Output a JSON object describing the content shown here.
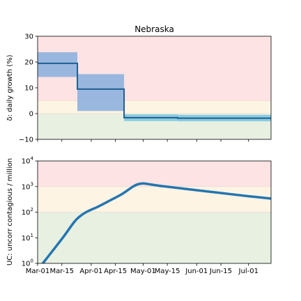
{
  "title": "Nebraska",
  "colors": {
    "zone_high": "#fde3e3",
    "zone_mid": "#fdf4e4",
    "zone_low": "#e7f0e1",
    "zone_line": "#eddccf",
    "band_blue": "#93b4dd",
    "band_cyan": "#86c8e0",
    "line_dark": "#1d5f91",
    "line_main": "#2475b0"
  },
  "chart_data": [
    {
      "type": "line",
      "title": "Nebraska",
      "ylabel": "δ: daily growth (%)",
      "ylim": [
        -10,
        30
      ],
      "yticks": [
        -10,
        0,
        10,
        20,
        30
      ],
      "ytick_labels": [
        "−10",
        "0",
        "10",
        "20",
        "30"
      ],
      "xlim": [
        "2020-03-01",
        "2020-07-14"
      ],
      "xticks": [
        "2020-03-01",
        "2020-03-15",
        "2020-04-01",
        "2020-04-15",
        "2020-05-01",
        "2020-05-15",
        "2020-06-01",
        "2020-06-15",
        "2020-07-01"
      ],
      "zones": [
        {
          "name": "high",
          "from": 5,
          "to": 30
        },
        {
          "name": "mid",
          "from": 0,
          "to": 5
        },
        {
          "name": "low",
          "from": -10,
          "to": 0
        }
      ],
      "segments": [
        {
          "start": "2020-03-01",
          "end": "2020-03-24",
          "value": 19.5,
          "ci": [
            14.2,
            23.8
          ],
          "band": "blue"
        },
        {
          "start": "2020-03-24",
          "end": "2020-04-20",
          "value": 9.5,
          "ci": [
            1.0,
            15.3
          ],
          "band": "blue"
        },
        {
          "start": "2020-04-20",
          "end": "2020-05-21",
          "value": -1.6,
          "ci": [
            -2.9,
            -0.3
          ],
          "band": "cyan"
        },
        {
          "start": "2020-05-21",
          "end": "2020-07-14",
          "value": -1.8,
          "ci": [
            -3.0,
            -0.5
          ],
          "band": "cyan"
        }
      ]
    },
    {
      "type": "line",
      "ylabel": "UC: uncorr contagious / million",
      "yscale": "log",
      "ylim": [
        1,
        10000
      ],
      "yticks": [
        1,
        10,
        100,
        1000,
        10000
      ],
      "ytick_labels": [
        {
          "base": "10",
          "exp": "0"
        },
        {
          "base": "10",
          "exp": "1"
        },
        {
          "base": "10",
          "exp": "2"
        },
        {
          "base": "10",
          "exp": "3"
        },
        {
          "base": "10",
          "exp": "4"
        }
      ],
      "xlim": [
        "2020-03-01",
        "2020-07-14"
      ],
      "xticks": [
        "2020-03-01",
        "2020-03-15",
        "2020-04-01",
        "2020-04-15",
        "2020-05-01",
        "2020-05-15",
        "2020-06-01",
        "2020-06-15",
        "2020-07-01"
      ],
      "xtick_labels": [
        "Mar-01",
        "Mar-15",
        "Apr-01",
        "Apr-15",
        "May-01",
        "May-15",
        "Jun-01",
        "Jun-15",
        "Jul-01"
      ],
      "zones": [
        {
          "name": "high",
          "from": 1000,
          "to": 10000
        },
        {
          "name": "mid",
          "from": 100,
          "to": 1000
        },
        {
          "name": "low",
          "from": 1,
          "to": 100
        }
      ],
      "series": [
        {
          "x": [
            "2020-03-04",
            "2020-03-10",
            "2020-03-16",
            "2020-03-22",
            "2020-03-25",
            "2020-03-29",
            "2020-04-05",
            "2020-04-12",
            "2020-04-19",
            "2020-04-25",
            "2020-04-28",
            "2020-05-01",
            "2020-05-04",
            "2020-05-10",
            "2020-05-20",
            "2020-06-01",
            "2020-06-15",
            "2020-07-01",
            "2020-07-14"
          ],
          "y": [
            1.0,
            3.3,
            11,
            40,
            65,
            100,
            165,
            290,
            520,
            980,
            1230,
            1330,
            1250,
            1080,
            900,
            720,
            560,
            420,
            340
          ]
        }
      ]
    }
  ]
}
